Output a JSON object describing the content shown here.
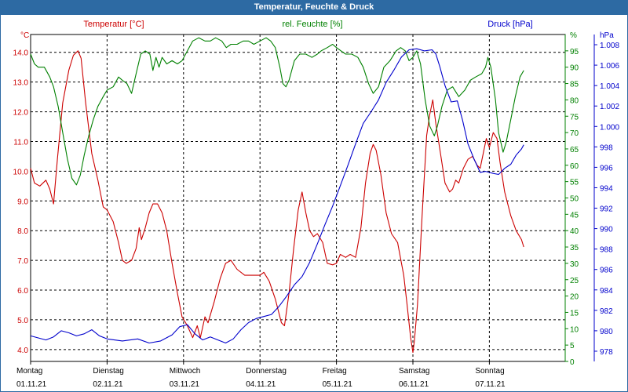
{
  "window": {
    "title": "Temperatur, Feuchte & Druck"
  },
  "colors": {
    "titlebar": "#2d6aa3",
    "temperature": "#cc0000",
    "humidity": "#008000",
    "pressure": "#0000cc"
  },
  "chart_data": {
    "type": "line",
    "title": "Temperatur, Feuchte & Druck",
    "grid": true,
    "x": {
      "tick_labels": [
        {
          "day": "Montag",
          "date": "01.11.21"
        },
        {
          "day": "Dienstag",
          "date": "02.11.21"
        },
        {
          "day": "Mittwoch",
          "date": "03.11.21"
        },
        {
          "day": "Donnerstag",
          "date": "04.11.21"
        },
        {
          "day": "Freitag",
          "date": "05.11.21"
        },
        {
          "day": "Samstag",
          "date": "06.11.21"
        },
        {
          "day": "Sonntag",
          "date": "07.11.21"
        }
      ],
      "range_days": [
        0,
        7
      ]
    },
    "axes": {
      "temperature": {
        "title": "Temperatur [°C]",
        "unit": "°C",
        "side": "left",
        "range": [
          3.6,
          14.6
        ],
        "ticks": [
          "4.0",
          "5.0",
          "6.0",
          "7.0",
          "8.0",
          "9.0",
          "10.0",
          "11.0",
          "12.0",
          "13.0",
          "14.0"
        ]
      },
      "humidity": {
        "title": "rel. Feuchte [%]",
        "unit": "%",
        "side": "right",
        "range": [
          0,
          100
        ],
        "ticks": [
          "0",
          "5",
          "10",
          "15",
          "20",
          "25",
          "30",
          "35",
          "40",
          "45",
          "50",
          "55",
          "60",
          "65",
          "70",
          "75",
          "80",
          "85",
          "90",
          "95"
        ]
      },
      "pressure": {
        "title": "Druck [hPa]",
        "unit": "hPa",
        "side": "right",
        "range": [
          977,
          1009
        ],
        "ticks": [
          "978",
          "980",
          "982",
          "984",
          "986",
          "988",
          "990",
          "992",
          "994",
          "996",
          "998",
          "1.000",
          "1.002",
          "1.004",
          "1.006",
          "1.008"
        ]
      }
    },
    "series": [
      {
        "name": "Temperatur [°C]",
        "axis": "temperature",
        "points": [
          [
            0,
            10.1
          ],
          [
            0.05,
            9.6
          ],
          [
            0.12,
            9.5
          ],
          [
            0.2,
            9.7
          ],
          [
            0.25,
            9.4
          ],
          [
            0.3,
            8.9
          ],
          [
            0.35,
            10.4
          ],
          [
            0.42,
            12.3
          ],
          [
            0.5,
            13.4
          ],
          [
            0.56,
            13.9
          ],
          [
            0.62,
            14.05
          ],
          [
            0.66,
            13.8
          ],
          [
            0.72,
            12.3
          ],
          [
            0.8,
            10.6
          ],
          [
            0.88,
            9.7
          ],
          [
            0.95,
            8.8
          ],
          [
            1.0,
            8.7
          ],
          [
            1.08,
            8.3
          ],
          [
            1.15,
            7.6
          ],
          [
            1.2,
            7.0
          ],
          [
            1.25,
            6.9
          ],
          [
            1.32,
            7.0
          ],
          [
            1.38,
            7.4
          ],
          [
            1.42,
            8.1
          ],
          [
            1.45,
            7.7
          ],
          [
            1.5,
            8.1
          ],
          [
            1.55,
            8.6
          ],
          [
            1.6,
            8.9
          ],
          [
            1.66,
            8.9
          ],
          [
            1.72,
            8.6
          ],
          [
            1.78,
            8.0
          ],
          [
            1.85,
            6.9
          ],
          [
            1.92,
            5.9
          ],
          [
            1.98,
            5.1
          ],
          [
            2.05,
            4.8
          ],
          [
            2.12,
            4.4
          ],
          [
            2.18,
            4.8
          ],
          [
            2.22,
            4.4
          ],
          [
            2.28,
            5.1
          ],
          [
            2.32,
            4.9
          ],
          [
            2.4,
            5.6
          ],
          [
            2.48,
            6.4
          ],
          [
            2.55,
            6.9
          ],
          [
            2.62,
            7.0
          ],
          [
            2.7,
            6.7
          ],
          [
            2.8,
            6.5
          ],
          [
            2.9,
            6.5
          ],
          [
            3.0,
            6.5
          ],
          [
            3.05,
            6.6
          ],
          [
            3.12,
            6.3
          ],
          [
            3.2,
            5.7
          ],
          [
            3.28,
            4.9
          ],
          [
            3.32,
            4.8
          ],
          [
            3.38,
            5.9
          ],
          [
            3.44,
            7.4
          ],
          [
            3.5,
            8.7
          ],
          [
            3.55,
            9.3
          ],
          [
            3.6,
            8.6
          ],
          [
            3.65,
            8.0
          ],
          [
            3.7,
            7.8
          ],
          [
            3.75,
            7.9
          ],
          [
            3.82,
            7.6
          ],
          [
            3.88,
            6.9
          ],
          [
            3.95,
            6.85
          ],
          [
            4.0,
            6.9
          ],
          [
            4.05,
            7.2
          ],
          [
            4.12,
            7.1
          ],
          [
            4.18,
            7.2
          ],
          [
            4.25,
            7.1
          ],
          [
            4.32,
            8.1
          ],
          [
            4.38,
            9.6
          ],
          [
            4.44,
            10.6
          ],
          [
            4.48,
            10.9
          ],
          [
            4.52,
            10.7
          ],
          [
            4.58,
            9.9
          ],
          [
            4.65,
            8.6
          ],
          [
            4.72,
            7.9
          ],
          [
            4.8,
            7.6
          ],
          [
            4.88,
            6.5
          ],
          [
            4.92,
            5.6
          ],
          [
            4.97,
            4.4
          ],
          [
            5.0,
            3.9
          ],
          [
            5.02,
            4.3
          ],
          [
            5.06,
            5.5
          ],
          [
            5.12,
            8.5
          ],
          [
            5.18,
            11.2
          ],
          [
            5.22,
            11.9
          ],
          [
            5.26,
            12.4
          ],
          [
            5.3,
            11.6
          ],
          [
            5.36,
            10.6
          ],
          [
            5.42,
            9.6
          ],
          [
            5.48,
            9.3
          ],
          [
            5.52,
            9.4
          ],
          [
            5.56,
            9.7
          ],
          [
            5.6,
            9.6
          ],
          [
            5.66,
            10.1
          ],
          [
            5.72,
            10.4
          ],
          [
            5.78,
            10.5
          ],
          [
            5.84,
            10.2
          ],
          [
            5.88,
            10.1
          ],
          [
            5.92,
            10.6
          ],
          [
            5.96,
            11.1
          ],
          [
            6.0,
            10.8
          ],
          [
            6.05,
            11.3
          ],
          [
            6.1,
            11.1
          ],
          [
            6.14,
            10.3
          ],
          [
            6.2,
            9.3
          ],
          [
            6.28,
            8.5
          ],
          [
            6.35,
            8.0
          ],
          [
            6.42,
            7.7
          ],
          [
            6.45,
            7.45
          ]
        ]
      },
      {
        "name": "rel. Feuchte [%]",
        "axis": "humidity",
        "points": [
          [
            0,
            94
          ],
          [
            0.05,
            91
          ],
          [
            0.1,
            90
          ],
          [
            0.18,
            90
          ],
          [
            0.25,
            87
          ],
          [
            0.3,
            84
          ],
          [
            0.36,
            78
          ],
          [
            0.42,
            70
          ],
          [
            0.48,
            62
          ],
          [
            0.54,
            56
          ],
          [
            0.6,
            54
          ],
          [
            0.65,
            57
          ],
          [
            0.7,
            63
          ],
          [
            0.76,
            69
          ],
          [
            0.82,
            74
          ],
          [
            0.88,
            78
          ],
          [
            0.95,
            81
          ],
          [
            1.0,
            83
          ],
          [
            1.08,
            84
          ],
          [
            1.15,
            87
          ],
          [
            1.2,
            86
          ],
          [
            1.26,
            85
          ],
          [
            1.32,
            82
          ],
          [
            1.38,
            88
          ],
          [
            1.44,
            94
          ],
          [
            1.5,
            95
          ],
          [
            1.56,
            94
          ],
          [
            1.6,
            89
          ],
          [
            1.64,
            93
          ],
          [
            1.68,
            90
          ],
          [
            1.72,
            93
          ],
          [
            1.78,
            91
          ],
          [
            1.85,
            92
          ],
          [
            1.92,
            91
          ],
          [
            1.98,
            92
          ],
          [
            2.05,
            95
          ],
          [
            2.12,
            98
          ],
          [
            2.2,
            99
          ],
          [
            2.28,
            98
          ],
          [
            2.35,
            98
          ],
          [
            2.42,
            99
          ],
          [
            2.5,
            98
          ],
          [
            2.56,
            96
          ],
          [
            2.62,
            97
          ],
          [
            2.7,
            97
          ],
          [
            2.78,
            98
          ],
          [
            2.85,
            98
          ],
          [
            2.92,
            97
          ],
          [
            3.0,
            98
          ],
          [
            3.08,
            99
          ],
          [
            3.14,
            98
          ],
          [
            3.2,
            96
          ],
          [
            3.26,
            90
          ],
          [
            3.3,
            85
          ],
          [
            3.34,
            84
          ],
          [
            3.38,
            86
          ],
          [
            3.45,
            92
          ],
          [
            3.52,
            94
          ],
          [
            3.6,
            94
          ],
          [
            3.68,
            93
          ],
          [
            3.75,
            94
          ],
          [
            3.8,
            95
          ],
          [
            3.88,
            96
          ],
          [
            3.95,
            97
          ],
          [
            4.0,
            96
          ],
          [
            4.06,
            95
          ],
          [
            4.12,
            94
          ],
          [
            4.2,
            94
          ],
          [
            4.28,
            93
          ],
          [
            4.35,
            90
          ],
          [
            4.42,
            85
          ],
          [
            4.48,
            82
          ],
          [
            4.55,
            84
          ],
          [
            4.62,
            90
          ],
          [
            4.7,
            92
          ],
          [
            4.78,
            95
          ],
          [
            4.84,
            96
          ],
          [
            4.9,
            95
          ],
          [
            4.95,
            92
          ],
          [
            5.0,
            93
          ],
          [
            5.05,
            95
          ],
          [
            5.1,
            91
          ],
          [
            5.16,
            80
          ],
          [
            5.22,
            72
          ],
          [
            5.28,
            69
          ],
          [
            5.32,
            72
          ],
          [
            5.38,
            78
          ],
          [
            5.45,
            83
          ],
          [
            5.52,
            84
          ],
          [
            5.6,
            81
          ],
          [
            5.68,
            83
          ],
          [
            5.75,
            86
          ],
          [
            5.82,
            87
          ],
          [
            5.9,
            88
          ],
          [
            5.95,
            90
          ],
          [
            5.98,
            93
          ],
          [
            6.02,
            90
          ],
          [
            6.08,
            80
          ],
          [
            6.12,
            70
          ],
          [
            6.18,
            64
          ],
          [
            6.22,
            67
          ],
          [
            6.28,
            74
          ],
          [
            6.34,
            81
          ],
          [
            6.4,
            87
          ],
          [
            6.45,
            89
          ]
        ]
      },
      {
        "name": "Druck [hPa]",
        "axis": "pressure",
        "points": [
          [
            0,
            979.5
          ],
          [
            0.1,
            979.3
          ],
          [
            0.2,
            979.1
          ],
          [
            0.3,
            979.4
          ],
          [
            0.4,
            980.0
          ],
          [
            0.5,
            979.8
          ],
          [
            0.6,
            979.5
          ],
          [
            0.7,
            979.7
          ],
          [
            0.8,
            980.1
          ],
          [
            0.9,
            979.5
          ],
          [
            1.0,
            979.2
          ],
          [
            1.2,
            979.0
          ],
          [
            1.4,
            979.2
          ],
          [
            1.55,
            978.8
          ],
          [
            1.7,
            979.0
          ],
          [
            1.85,
            979.6
          ],
          [
            1.95,
            980.4
          ],
          [
            2.05,
            980.6
          ],
          [
            2.15,
            979.7
          ],
          [
            2.25,
            979.1
          ],
          [
            2.35,
            979.4
          ],
          [
            2.45,
            979.1
          ],
          [
            2.55,
            978.8
          ],
          [
            2.65,
            979.2
          ],
          [
            2.75,
            980.1
          ],
          [
            2.85,
            980.8
          ],
          [
            2.95,
            981.2
          ],
          [
            3.05,
            981.4
          ],
          [
            3.15,
            981.6
          ],
          [
            3.25,
            982.4
          ],
          [
            3.35,
            983.4
          ],
          [
            3.45,
            984.5
          ],
          [
            3.55,
            985.3
          ],
          [
            3.65,
            986.7
          ],
          [
            3.75,
            988.5
          ],
          [
            3.85,
            990.4
          ],
          [
            3.95,
            992.2
          ],
          [
            4.05,
            994.2
          ],
          [
            4.15,
            996.2
          ],
          [
            4.25,
            998.3
          ],
          [
            4.35,
            1000.3
          ],
          [
            4.45,
            1001.4
          ],
          [
            4.55,
            1002.6
          ],
          [
            4.65,
            1004.3
          ],
          [
            4.75,
            1005.5
          ],
          [
            4.85,
            1006.8
          ],
          [
            4.95,
            1007.5
          ],
          [
            5.05,
            1007.6
          ],
          [
            5.15,
            1007.4
          ],
          [
            5.25,
            1007.5
          ],
          [
            5.3,
            1007.1
          ],
          [
            5.35,
            1005.9
          ],
          [
            5.42,
            1004.0
          ],
          [
            5.5,
            1002.4
          ],
          [
            5.58,
            1002.5
          ],
          [
            5.65,
            1000.6
          ],
          [
            5.72,
            998.3
          ],
          [
            5.8,
            996.8
          ],
          [
            5.88,
            995.5
          ],
          [
            5.95,
            995.6
          ],
          [
            6.05,
            995.4
          ],
          [
            6.12,
            995.3
          ],
          [
            6.2,
            995.9
          ],
          [
            6.28,
            996.3
          ],
          [
            6.35,
            997.2
          ],
          [
            6.42,
            997.8
          ],
          [
            6.45,
            998.2
          ]
        ]
      }
    ]
  }
}
